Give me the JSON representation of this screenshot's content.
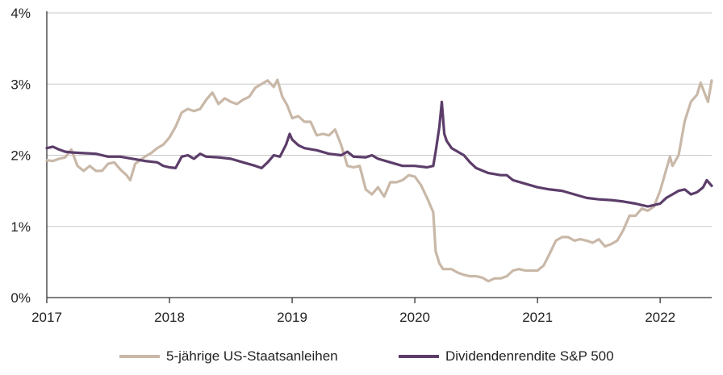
{
  "chart_data": {
    "type": "line",
    "title": "",
    "xlabel": "",
    "ylabel": "",
    "xlim": [
      2017.0,
      2022.42
    ],
    "ylim": [
      0,
      4
    ],
    "x_ticks": [
      "2017",
      "2018",
      "2019",
      "2020",
      "2021",
      "2022"
    ],
    "y_ticks": [
      "0%",
      "1%",
      "2%",
      "3%",
      "4%"
    ],
    "grid": "horizontal",
    "legend_position": "bottom",
    "series": [
      {
        "name": "5-jährige US-Staatsanleihen",
        "color": "#c9b8a8",
        "points": [
          [
            2017.0,
            1.93
          ],
          [
            2017.05,
            1.92
          ],
          [
            2017.1,
            1.95
          ],
          [
            2017.15,
            1.97
          ],
          [
            2017.2,
            2.08
          ],
          [
            2017.25,
            1.85
          ],
          [
            2017.3,
            1.78
          ],
          [
            2017.35,
            1.85
          ],
          [
            2017.4,
            1.78
          ],
          [
            2017.45,
            1.78
          ],
          [
            2017.5,
            1.88
          ],
          [
            2017.55,
            1.9
          ],
          [
            2017.6,
            1.8
          ],
          [
            2017.65,
            1.72
          ],
          [
            2017.68,
            1.65
          ],
          [
            2017.72,
            1.88
          ],
          [
            2017.8,
            1.98
          ],
          [
            2017.85,
            2.03
          ],
          [
            2017.9,
            2.1
          ],
          [
            2017.95,
            2.15
          ],
          [
            2018.0,
            2.25
          ],
          [
            2018.05,
            2.4
          ],
          [
            2018.1,
            2.6
          ],
          [
            2018.15,
            2.65
          ],
          [
            2018.2,
            2.62
          ],
          [
            2018.25,
            2.65
          ],
          [
            2018.3,
            2.78
          ],
          [
            2018.35,
            2.88
          ],
          [
            2018.4,
            2.72
          ],
          [
            2018.45,
            2.8
          ],
          [
            2018.5,
            2.75
          ],
          [
            2018.55,
            2.72
          ],
          [
            2018.6,
            2.78
          ],
          [
            2018.65,
            2.82
          ],
          [
            2018.7,
            2.95
          ],
          [
            2018.75,
            3.0
          ],
          [
            2018.8,
            3.05
          ],
          [
            2018.85,
            2.96
          ],
          [
            2018.88,
            3.06
          ],
          [
            2018.92,
            2.82
          ],
          [
            2018.96,
            2.7
          ],
          [
            2019.0,
            2.52
          ],
          [
            2019.05,
            2.55
          ],
          [
            2019.1,
            2.47
          ],
          [
            2019.15,
            2.47
          ],
          [
            2019.2,
            2.28
          ],
          [
            2019.25,
            2.3
          ],
          [
            2019.3,
            2.28
          ],
          [
            2019.35,
            2.36
          ],
          [
            2019.4,
            2.14
          ],
          [
            2019.45,
            1.85
          ],
          [
            2019.5,
            1.83
          ],
          [
            2019.55,
            1.85
          ],
          [
            2019.6,
            1.52
          ],
          [
            2019.65,
            1.45
          ],
          [
            2019.7,
            1.55
          ],
          [
            2019.75,
            1.42
          ],
          [
            2019.8,
            1.62
          ],
          [
            2019.85,
            1.62
          ],
          [
            2019.9,
            1.65
          ],
          [
            2019.95,
            1.72
          ],
          [
            2020.0,
            1.7
          ],
          [
            2020.05,
            1.58
          ],
          [
            2020.1,
            1.4
          ],
          [
            2020.15,
            1.2
          ],
          [
            2020.17,
            0.65
          ],
          [
            2020.2,
            0.48
          ],
          [
            2020.23,
            0.4
          ],
          [
            2020.3,
            0.4
          ],
          [
            2020.35,
            0.35
          ],
          [
            2020.4,
            0.32
          ],
          [
            2020.45,
            0.3
          ],
          [
            2020.5,
            0.3
          ],
          [
            2020.55,
            0.28
          ],
          [
            2020.6,
            0.23
          ],
          [
            2020.65,
            0.27
          ],
          [
            2020.7,
            0.27
          ],
          [
            2020.75,
            0.3
          ],
          [
            2020.8,
            0.38
          ],
          [
            2020.85,
            0.4
          ],
          [
            2020.9,
            0.38
          ],
          [
            2020.95,
            0.38
          ],
          [
            2021.0,
            0.38
          ],
          [
            2021.05,
            0.45
          ],
          [
            2021.1,
            0.62
          ],
          [
            2021.15,
            0.8
          ],
          [
            2021.2,
            0.85
          ],
          [
            2021.25,
            0.85
          ],
          [
            2021.3,
            0.8
          ],
          [
            2021.35,
            0.82
          ],
          [
            2021.4,
            0.8
          ],
          [
            2021.45,
            0.77
          ],
          [
            2021.5,
            0.82
          ],
          [
            2021.55,
            0.72
          ],
          [
            2021.6,
            0.75
          ],
          [
            2021.65,
            0.8
          ],
          [
            2021.7,
            0.95
          ],
          [
            2021.75,
            1.15
          ],
          [
            2021.8,
            1.15
          ],
          [
            2021.85,
            1.25
          ],
          [
            2021.9,
            1.22
          ],
          [
            2021.95,
            1.28
          ],
          [
            2022.0,
            1.5
          ],
          [
            2022.05,
            1.8
          ],
          [
            2022.08,
            1.98
          ],
          [
            2022.1,
            1.85
          ],
          [
            2022.15,
            2.0
          ],
          [
            2022.2,
            2.48
          ],
          [
            2022.25,
            2.75
          ],
          [
            2022.3,
            2.85
          ],
          [
            2022.33,
            3.02
          ],
          [
            2022.36,
            2.88
          ],
          [
            2022.39,
            2.75
          ],
          [
            2022.42,
            3.05
          ]
        ]
      },
      {
        "name": "Dividendenrendite S&P 500",
        "color": "#5c3d6a",
        "points": [
          [
            2017.0,
            2.1
          ],
          [
            2017.05,
            2.12
          ],
          [
            2017.1,
            2.08
          ],
          [
            2017.15,
            2.05
          ],
          [
            2017.2,
            2.04
          ],
          [
            2017.3,
            2.03
          ],
          [
            2017.4,
            2.02
          ],
          [
            2017.5,
            1.98
          ],
          [
            2017.6,
            1.98
          ],
          [
            2017.7,
            1.95
          ],
          [
            2017.8,
            1.92
          ],
          [
            2017.9,
            1.9
          ],
          [
            2017.95,
            1.85
          ],
          [
            2018.0,
            1.83
          ],
          [
            2018.05,
            1.82
          ],
          [
            2018.1,
            1.98
          ],
          [
            2018.15,
            2.0
          ],
          [
            2018.2,
            1.95
          ],
          [
            2018.25,
            2.02
          ],
          [
            2018.3,
            1.98
          ],
          [
            2018.4,
            1.97
          ],
          [
            2018.5,
            1.95
          ],
          [
            2018.6,
            1.9
          ],
          [
            2018.7,
            1.85
          ],
          [
            2018.75,
            1.82
          ],
          [
            2018.8,
            1.9
          ],
          [
            2018.85,
            2.0
          ],
          [
            2018.9,
            1.98
          ],
          [
            2018.95,
            2.15
          ],
          [
            2018.98,
            2.3
          ],
          [
            2019.0,
            2.22
          ],
          [
            2019.05,
            2.14
          ],
          [
            2019.1,
            2.1
          ],
          [
            2019.2,
            2.07
          ],
          [
            2019.3,
            2.02
          ],
          [
            2019.4,
            2.0
          ],
          [
            2019.45,
            2.05
          ],
          [
            2019.5,
            1.98
          ],
          [
            2019.6,
            1.97
          ],
          [
            2019.65,
            2.0
          ],
          [
            2019.7,
            1.95
          ],
          [
            2019.8,
            1.9
          ],
          [
            2019.9,
            1.85
          ],
          [
            2020.0,
            1.85
          ],
          [
            2020.1,
            1.83
          ],
          [
            2020.15,
            1.85
          ],
          [
            2020.17,
            2.05
          ],
          [
            2020.2,
            2.4
          ],
          [
            2020.22,
            2.75
          ],
          [
            2020.24,
            2.3
          ],
          [
            2020.26,
            2.2
          ],
          [
            2020.3,
            2.1
          ],
          [
            2020.35,
            2.05
          ],
          [
            2020.4,
            2.0
          ],
          [
            2020.45,
            1.9
          ],
          [
            2020.5,
            1.82
          ],
          [
            2020.6,
            1.75
          ],
          [
            2020.7,
            1.72
          ],
          [
            2020.75,
            1.72
          ],
          [
            2020.8,
            1.65
          ],
          [
            2020.9,
            1.6
          ],
          [
            2021.0,
            1.55
          ],
          [
            2021.1,
            1.52
          ],
          [
            2021.2,
            1.5
          ],
          [
            2021.3,
            1.45
          ],
          [
            2021.4,
            1.4
          ],
          [
            2021.5,
            1.38
          ],
          [
            2021.6,
            1.37
          ],
          [
            2021.7,
            1.35
          ],
          [
            2021.8,
            1.32
          ],
          [
            2021.85,
            1.3
          ],
          [
            2021.9,
            1.28
          ],
          [
            2021.95,
            1.3
          ],
          [
            2022.0,
            1.32
          ],
          [
            2022.05,
            1.4
          ],
          [
            2022.1,
            1.45
          ],
          [
            2022.15,
            1.5
          ],
          [
            2022.2,
            1.52
          ],
          [
            2022.25,
            1.45
          ],
          [
            2022.3,
            1.48
          ],
          [
            2022.35,
            1.55
          ],
          [
            2022.38,
            1.65
          ],
          [
            2022.42,
            1.57
          ]
        ]
      }
    ]
  }
}
